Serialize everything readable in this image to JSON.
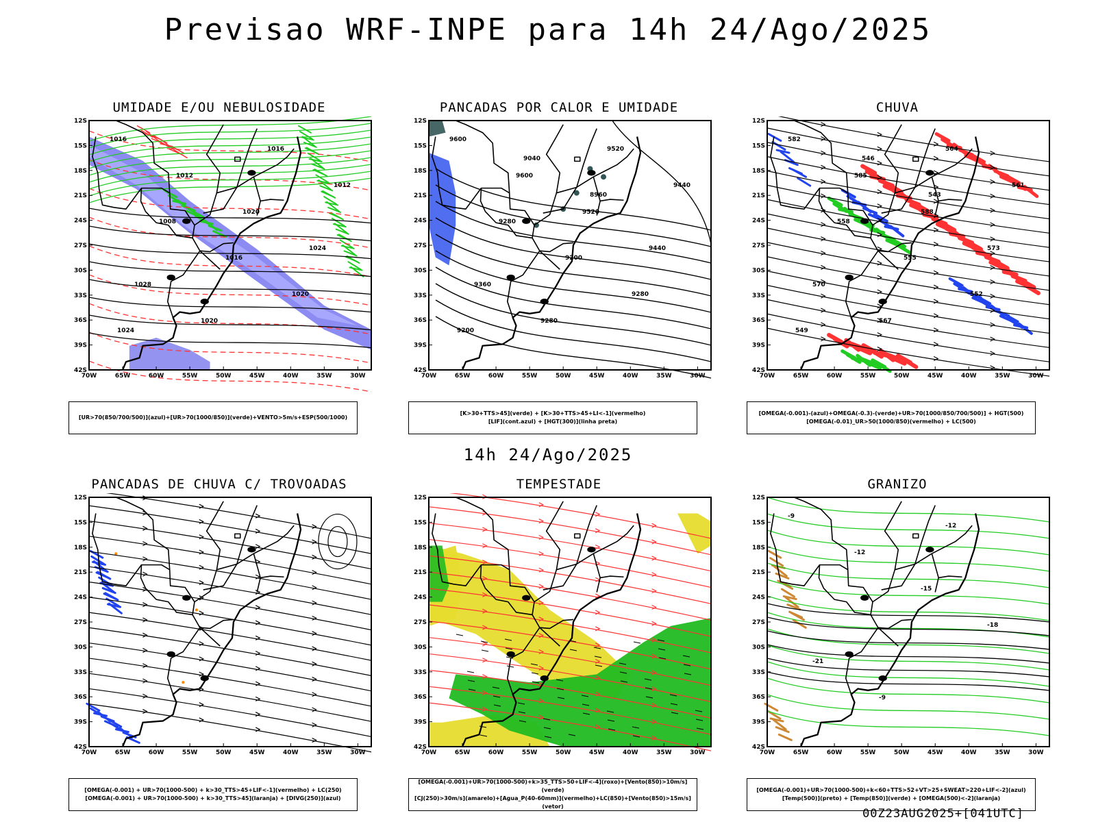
{
  "title": "Previsao WRF-INPE  para 14h 24/Ago/2025",
  "middle_title": "14h 24/Ago/2025",
  "footer": "00Z23AUG2025+[041UTC]",
  "lat_ticks": [
    "12S",
    "15S",
    "18S",
    "21S",
    "24S",
    "27S",
    "30S",
    "33S",
    "36S",
    "39S",
    "42S"
  ],
  "lon_ticks": [
    "70W",
    "65W",
    "60W",
    "55W",
    "50W",
    "45W",
    "40W",
    "35W",
    "30W"
  ],
  "panels": [
    {
      "title": "UMIDADE E/OU NEBULOSIDADE",
      "legend": [
        "[UR>70(850/700/500)](azul)+[UR>70(1000/850)](verde)+VENTO>5m/s+ESP(500/1000)"
      ],
      "contour_labels": [
        "1016",
        "1012",
        "1020",
        "1024",
        "1028",
        "1020",
        "1016",
        "1012",
        "1008",
        "1016",
        "1020",
        "1024"
      ],
      "colors": {
        "green": "#22cc22",
        "blue": "#5555dd",
        "red": "#ff3333"
      }
    },
    {
      "title": "PANCADAS POR CALOR E UMIDADE",
      "legend": [
        "[K>30+TTS>45](verde) + [K>30+TTS>45+LI<-1](vermelho)",
        "[LIF](cont.azul) + [HGT(300)](linha preta)"
      ],
      "contour_labels": [
        "9600",
        "9600",
        "9520",
        "9440",
        "9360",
        "9280",
        "9520",
        "9440",
        "9280",
        "9200",
        "9280",
        "9200",
        "9040",
        "8960"
      ],
      "colors": {
        "blue": "#3355ee",
        "teal": "#335555"
      }
    },
    {
      "title": "CHUVA",
      "legend": [
        "[OMEGA(-0.001)-(azul)+OMEGA(-0.3)-(verde)+UR>70(1000/850/700/500)] + HGT(500)",
        "[OMEGA(-0.01)_UR>50(1000/850)(vermelho) + LC(500)"
      ],
      "contour_labels": [
        "582",
        "585",
        "588",
        "573",
        "570",
        "567",
        "564",
        "561",
        "558",
        "555",
        "552",
        "549",
        "546",
        "543"
      ],
      "colors": {
        "red": "#ff3333",
        "blue": "#2244ee",
        "green": "#22cc22"
      }
    },
    {
      "title": "PANCADAS DE CHUVA C/ TROVOADAS",
      "legend": [
        "[OMEGA(-0.001) + UR>70(1000-500) + k>30_TTS>45+LIF<-1](vermelho) + LC(250)",
        "[OMEGA(-0.001) + UR>70(1000-500) + k>30_TTS>45](laranja) + [DIVG(250)](azul)"
      ],
      "contour_labels": [],
      "colors": {
        "blue": "#2244ee",
        "orange": "#ff8800"
      }
    },
    {
      "title": "TEMPESTADE",
      "legend": [
        "[OMEGA(-0.001)+UR>70(1000-500)+k>35_TTS>50+LIF<-4](roxo)+[Vento(850)>10m/s](verde)",
        "[CJ(250)>30m/s](amarelo)+[Agua_P(40-60mm)](vermelho)+LC(850)+[Vento(850)>15m/s](vetor)"
      ],
      "contour_labels": [],
      "colors": {
        "yellow": "#e6dc2e",
        "green": "#22bb22",
        "red": "#ff3333"
      }
    },
    {
      "title": "GRANIZO",
      "legend": [
        "[OMEGA(-0.001)+UR>70(1000-500)+k<60+TTS>52+VT>25+SWEAT>220+LIF<-2](azul)",
        "[Temp(500)](preto) + [Temp(850)](verde) + [OMEGA(500)<-2](laranja)"
      ],
      "contour_labels": [
        "-9",
        "-12",
        "-15",
        "-18",
        "-21",
        "-9",
        "-12"
      ],
      "colors": {
        "green": "#22cc22",
        "orange": "#cc8833"
      }
    }
  ]
}
